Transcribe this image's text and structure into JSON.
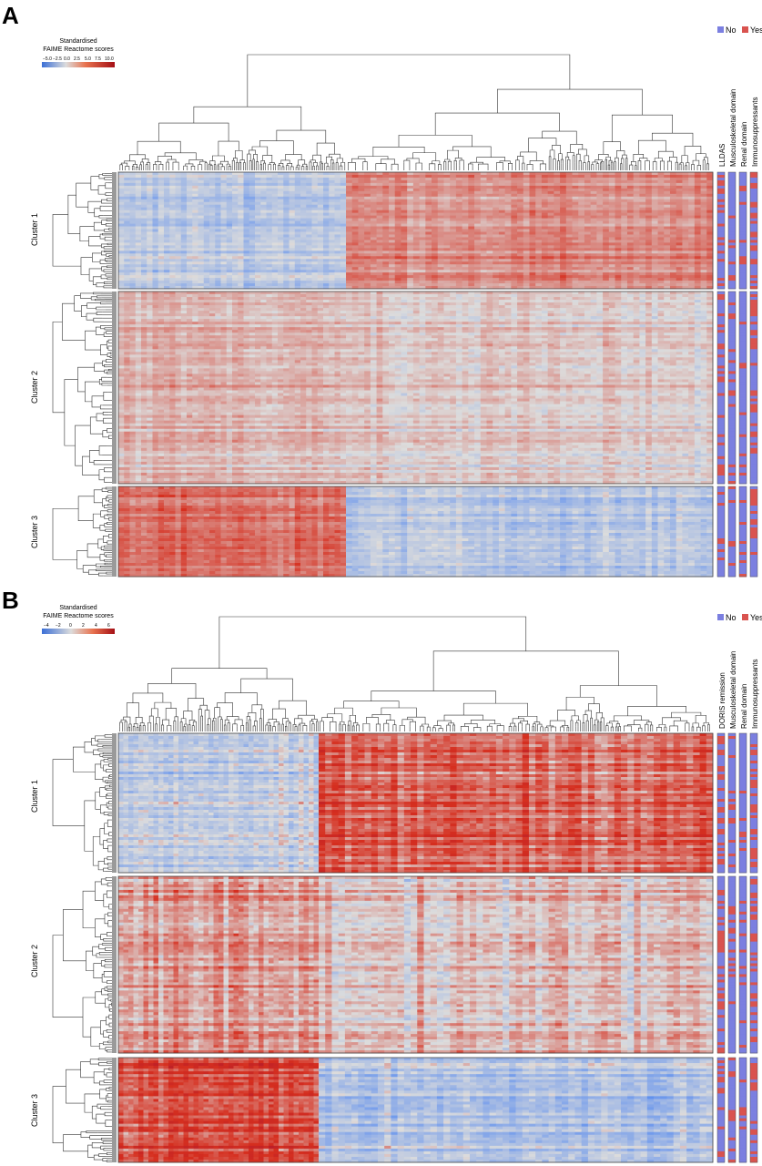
{
  "legend": {
    "no_label": "No",
    "yes_label": "Yes",
    "no_color": "#7b7fe0",
    "yes_color": "#d9534f"
  },
  "colors": {
    "low": "#5b8def",
    "mid": "#dcdcdc",
    "high": "#d62f1f",
    "max": "#b2182b"
  },
  "chart_data": [
    {
      "type": "heatmap",
      "panel_label": "A",
      "title": "Standardised FAIME Reactome scores",
      "colorbar_ticks": [
        "−5.0",
        "−2.5",
        "0.0",
        "2.5",
        "5.0",
        "7.5",
        "10.0"
      ],
      "colorbar_range": [
        -5.0,
        10.0
      ],
      "column_groups": [
        "left",
        "right"
      ],
      "annotations": [
        "LLDAS",
        "Musculoskeletal domain",
        "Renal domain",
        "Immunosuppressants"
      ],
      "row_clusters": [
        {
          "label": "Cluster 1",
          "mean_left": -1.2,
          "mean_right": 2.6
        },
        {
          "label": "Cluster 2",
          "mean_left": 1.4,
          "mean_right": 0.6
        },
        {
          "label": "Cluster 3",
          "mean_left": 3.4,
          "mean_right": -1.4
        }
      ]
    },
    {
      "type": "heatmap",
      "panel_label": "B",
      "title": "Standardised FAIME Reactome scores",
      "colorbar_ticks": [
        "−4",
        "−2",
        "0",
        "2",
        "4",
        "6"
      ],
      "colorbar_range": [
        -4,
        6
      ],
      "column_groups": [
        "left",
        "right"
      ],
      "annotations": [
        "DORIS remission",
        "Musculoskeletal domain",
        "Renal domain",
        "Immunosuppressants"
      ],
      "row_clusters": [
        {
          "label": "Cluster 1",
          "mean_left": -0.8,
          "mean_right": 2.2
        },
        {
          "label": "Cluster 2",
          "mean_left": 1.3,
          "mean_right": 0.6
        },
        {
          "label": "Cluster 3",
          "mean_left": 2.8,
          "mean_right": -1.3
        }
      ]
    }
  ]
}
